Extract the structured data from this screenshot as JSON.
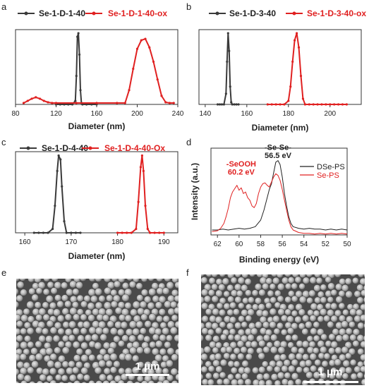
{
  "chart_data": [
    {
      "panel": "a",
      "type": "line",
      "xlabel": "Diameter (nm)",
      "ylabel": "",
      "xlim": [
        80,
        240
      ],
      "ylim": [
        0,
        1.05
      ],
      "xticks": [
        "80",
        "120",
        "160",
        "200",
        "240"
      ],
      "xtick_values": [
        80,
        120,
        160,
        200,
        240
      ],
      "series": [
        {
          "name": "Se-1-D-1-40",
          "color": "#3a3a3a",
          "x": [
            120,
            124,
            128,
            132,
            136,
            139,
            140,
            141,
            142,
            143,
            144,
            145,
            146,
            150,
            155,
            160
          ],
          "y": [
            0.0,
            0.0,
            0.0,
            0.0,
            0.0,
            0.05,
            0.4,
            0.95,
            1.0,
            0.7,
            0.2,
            0.02,
            0.0,
            0.0,
            0.0,
            0.0
          ]
        },
        {
          "name": "Se-1-D-1-40-ox",
          "color": "#e02020",
          "x": [
            88,
            92,
            96,
            100,
            104,
            108,
            112,
            116,
            120,
            140,
            160,
            180,
            188,
            192,
            196,
            200,
            204,
            208,
            212,
            216,
            220,
            224,
            228,
            232,
            236
          ],
          "y": [
            0.02,
            0.05,
            0.08,
            0.1,
            0.08,
            0.05,
            0.03,
            0.02,
            0.02,
            0.02,
            0.02,
            0.02,
            0.02,
            0.2,
            0.5,
            0.78,
            0.9,
            0.92,
            0.8,
            0.6,
            0.35,
            0.12,
            0.03,
            0.02,
            0.02
          ]
        }
      ]
    },
    {
      "panel": "b",
      "type": "line",
      "xlabel": "Diameter (nm)",
      "ylabel": "",
      "xlim": [
        137,
        215
      ],
      "ylim": [
        0,
        1.05
      ],
      "xticks": [
        "140",
        "160",
        "180",
        "200"
      ],
      "xtick_values": [
        140,
        160,
        180,
        200
      ],
      "series": [
        {
          "name": "Se-1-D-3-40",
          "color": "#3a3a3a",
          "x": [
            146,
            147,
            148,
            149,
            150,
            150.5,
            151,
            151.5,
            152,
            152.5,
            153,
            154,
            155,
            156
          ],
          "y": [
            0.0,
            0.0,
            0.0,
            0.0,
            0.15,
            0.6,
            1.0,
            0.75,
            0.25,
            0.03,
            0.0,
            0.0,
            0.0,
            0.0
          ]
        },
        {
          "name": "Se-1-D-3-40-ox",
          "color": "#e02020",
          "x": [
            170,
            172,
            174,
            176,
            178,
            180,
            181,
            182,
            183,
            184,
            185,
            186,
            187,
            188,
            190,
            192,
            194,
            196,
            198,
            200,
            202,
            204,
            206,
            208
          ],
          "y": [
            0.0,
            0.0,
            0.0,
            0.0,
            0.0,
            0.05,
            0.25,
            0.6,
            0.9,
            1.0,
            0.8,
            0.4,
            0.08,
            0.0,
            0.0,
            0.0,
            0.0,
            0.0,
            0.0,
            0.0,
            0.0,
            0.0,
            0.0,
            0.0
          ]
        }
      ]
    },
    {
      "panel": "c",
      "type": "line",
      "xlabel": "Diameter  (nm)",
      "ylabel": "",
      "xlim": [
        158,
        193
      ],
      "ylim": [
        0,
        1.05
      ],
      "xticks": [
        "160",
        "170",
        "180",
        "190"
      ],
      "xtick_values": [
        160,
        170,
        180,
        190
      ],
      "series": [
        {
          "name": "Se-1-D-4-40",
          "color": "#3a3a3a",
          "x": [
            162,
            163,
            164,
            165,
            166,
            166.5,
            167,
            167.3,
            167.7,
            168,
            168.5,
            169,
            170,
            171,
            172
          ],
          "y": [
            0.0,
            0.0,
            0.0,
            0.0,
            0.05,
            0.35,
            0.8,
            1.0,
            0.95,
            0.6,
            0.15,
            0.0,
            0.0,
            0.0,
            0.0
          ]
        },
        {
          "name": "Se-1-D-4-40-Ox",
          "color": "#e02020",
          "x": [
            180,
            181,
            182,
            183,
            184,
            184.5,
            185,
            185.3,
            185.6,
            186,
            186.5,
            187,
            188,
            189,
            190
          ],
          "y": [
            0.0,
            0.0,
            0.0,
            0.0,
            0.05,
            0.4,
            0.85,
            1.0,
            0.8,
            0.35,
            0.05,
            0.0,
            0.0,
            0.0,
            0.0
          ]
        }
      ]
    },
    {
      "panel": "d",
      "type": "line",
      "xlabel": "Binding energy (eV)",
      "ylabel": "Intensity (a.u.)",
      "xlim": [
        62.6,
        50
      ],
      "ylim": [
        0,
        1.05
      ],
      "xticks": [
        "62",
        "60",
        "58",
        "56",
        "54",
        "52",
        "50"
      ],
      "xtick_values": [
        62,
        60,
        58,
        56,
        54,
        52,
        50
      ],
      "annotations": [
        {
          "text": "-SeOOH",
          "x": 59.8,
          "y": 0.83,
          "color": "#e02020"
        },
        {
          "text": "60.2 eV",
          "x": 59.8,
          "y": 0.73,
          "color": "#e02020"
        },
        {
          "text": "-Se-Se-",
          "x": 56.4,
          "y": 1.03,
          "color": "#222222"
        },
        {
          "text": "56.5 eV",
          "x": 56.4,
          "y": 0.93,
          "color": "#222222"
        }
      ],
      "series": [
        {
          "name": "DSe-PS",
          "color": "#222222",
          "x": [
            62.5,
            62,
            61.5,
            61,
            60.5,
            60,
            59.5,
            59,
            58.5,
            58,
            57.7,
            57.4,
            57.2,
            57,
            56.8,
            56.6,
            56.4,
            56.2,
            56,
            55.8,
            55.6,
            55.4,
            55.2,
            55,
            54.5,
            54,
            53.5,
            53,
            52.5,
            52,
            51.5,
            51,
            50.5,
            50
          ],
          "y": [
            0.06,
            0.06,
            0.07,
            0.06,
            0.07,
            0.08,
            0.07,
            0.08,
            0.1,
            0.18,
            0.3,
            0.45,
            0.55,
            0.62,
            0.75,
            0.88,
            0.9,
            0.85,
            0.7,
            0.5,
            0.35,
            0.22,
            0.14,
            0.1,
            0.08,
            0.07,
            0.08,
            0.07,
            0.07,
            0.06,
            0.07,
            0.06,
            0.07,
            0.06
          ]
        },
        {
          "name": "Se-PS",
          "color": "#e02020",
          "x": [
            62.5,
            62,
            61.7,
            61.4,
            61.2,
            61,
            60.8,
            60.6,
            60.4,
            60.2,
            60,
            59.8,
            59.6,
            59.4,
            59.2,
            59,
            58.8,
            58.6,
            58.4,
            58.2,
            58,
            57.8,
            57.6,
            57.4,
            57.2,
            57,
            56.8,
            56.6,
            56.4,
            56.2,
            56,
            55.8,
            55.6,
            55.4,
            55.2,
            55,
            54.5,
            54,
            53.5,
            53,
            52.5,
            52,
            51.5,
            51,
            50.5,
            50
          ],
          "y": [
            0.04,
            0.05,
            0.08,
            0.14,
            0.22,
            0.32,
            0.45,
            0.52,
            0.56,
            0.6,
            0.54,
            0.57,
            0.5,
            0.52,
            0.45,
            0.42,
            0.35,
            0.33,
            0.38,
            0.5,
            0.58,
            0.62,
            0.63,
            0.6,
            0.58,
            0.64,
            0.7,
            0.74,
            0.72,
            0.66,
            0.55,
            0.42,
            0.3,
            0.18,
            0.1,
            0.06,
            0.03,
            0.02,
            0.02,
            0.01,
            0.02,
            0.01,
            0.02,
            0.01,
            0.02,
            0.01
          ]
        }
      ]
    }
  ],
  "micrographs": [
    {
      "panel": "e",
      "scale_bar_label": "1 μm"
    },
    {
      "panel": "f",
      "scale_bar_label": "1 μm"
    }
  ]
}
